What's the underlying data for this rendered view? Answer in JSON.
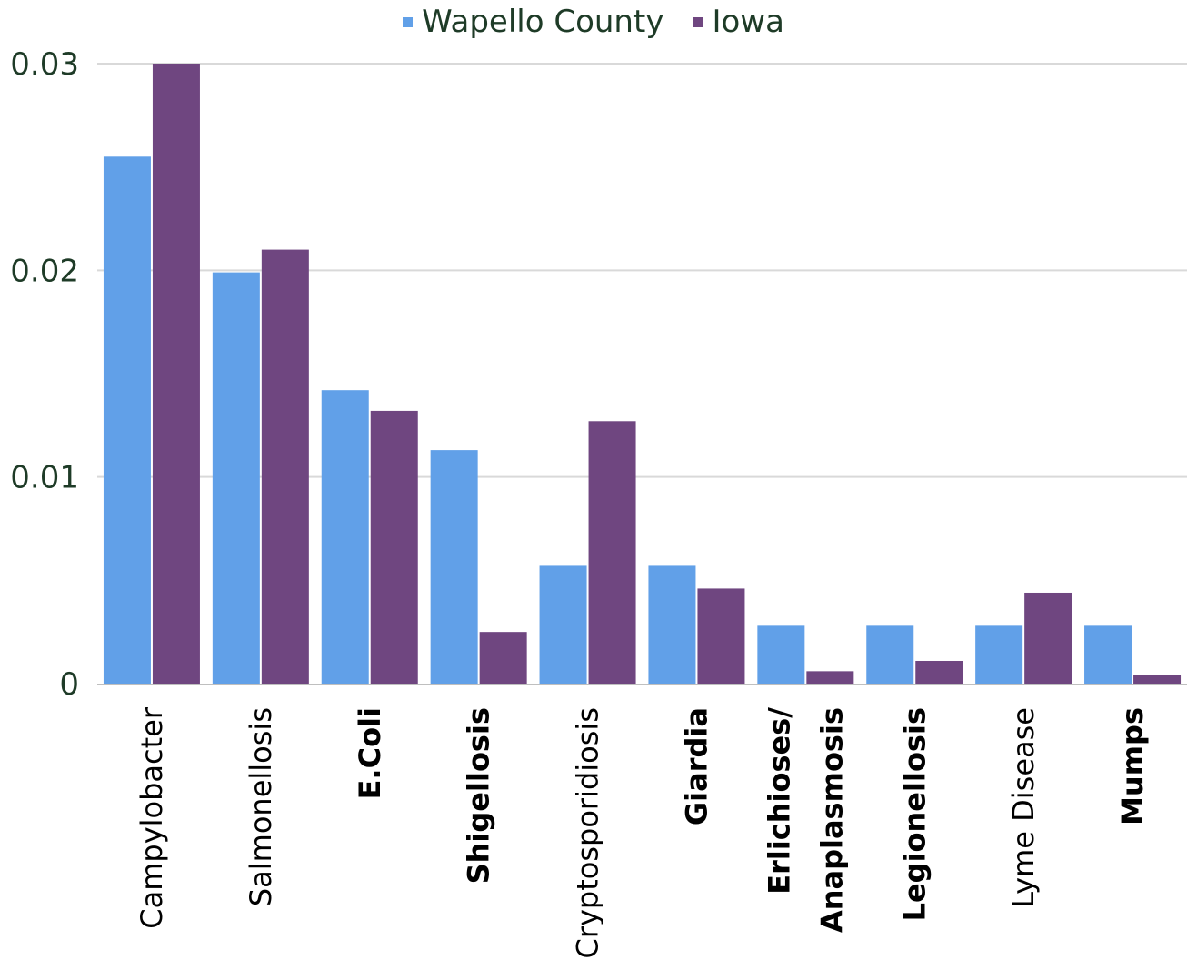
{
  "chart_data": {
    "type": "bar",
    "title": "",
    "xlabel": "",
    "ylabel": "",
    "ylim": [
      0,
      0.03
    ],
    "yticks": [
      "0",
      "0.01",
      "0.02",
      "0.03"
    ],
    "grid": true,
    "legend_position": "top-center",
    "categories": [
      {
        "lines": [
          "Campylobacter"
        ],
        "bold": false
      },
      {
        "lines": [
          "Salmonellosis"
        ],
        "bold": false
      },
      {
        "lines": [
          "E.Coli"
        ],
        "bold": true
      },
      {
        "lines": [
          "Shigellosis"
        ],
        "bold": true
      },
      {
        "lines": [
          "Cryptosporidiosis"
        ],
        "bold": false
      },
      {
        "lines": [
          "Giardia"
        ],
        "bold": true
      },
      {
        "lines": [
          "Erlichioses/",
          "Anaplasmosis"
        ],
        "bold": true
      },
      {
        "lines": [
          "Legionellosis"
        ],
        "bold": true
      },
      {
        "lines": [
          "Lyme Disease"
        ],
        "bold": false
      },
      {
        "lines": [
          "Mumps"
        ],
        "bold": true
      }
    ],
    "series": [
      {
        "name": "Wapello County",
        "color": "#61a0e8",
        "values": [
          0.0255,
          0.0199,
          0.0142,
          0.0113,
          0.0057,
          0.0057,
          0.0028,
          0.0028,
          0.0028,
          0.0028
        ]
      },
      {
        "name": "Iowa",
        "color": "#6f4680",
        "values": [
          0.03,
          0.021,
          0.0132,
          0.0025,
          0.0127,
          0.0046,
          0.0006,
          0.0011,
          0.0044,
          0.0004
        ]
      }
    ]
  }
}
